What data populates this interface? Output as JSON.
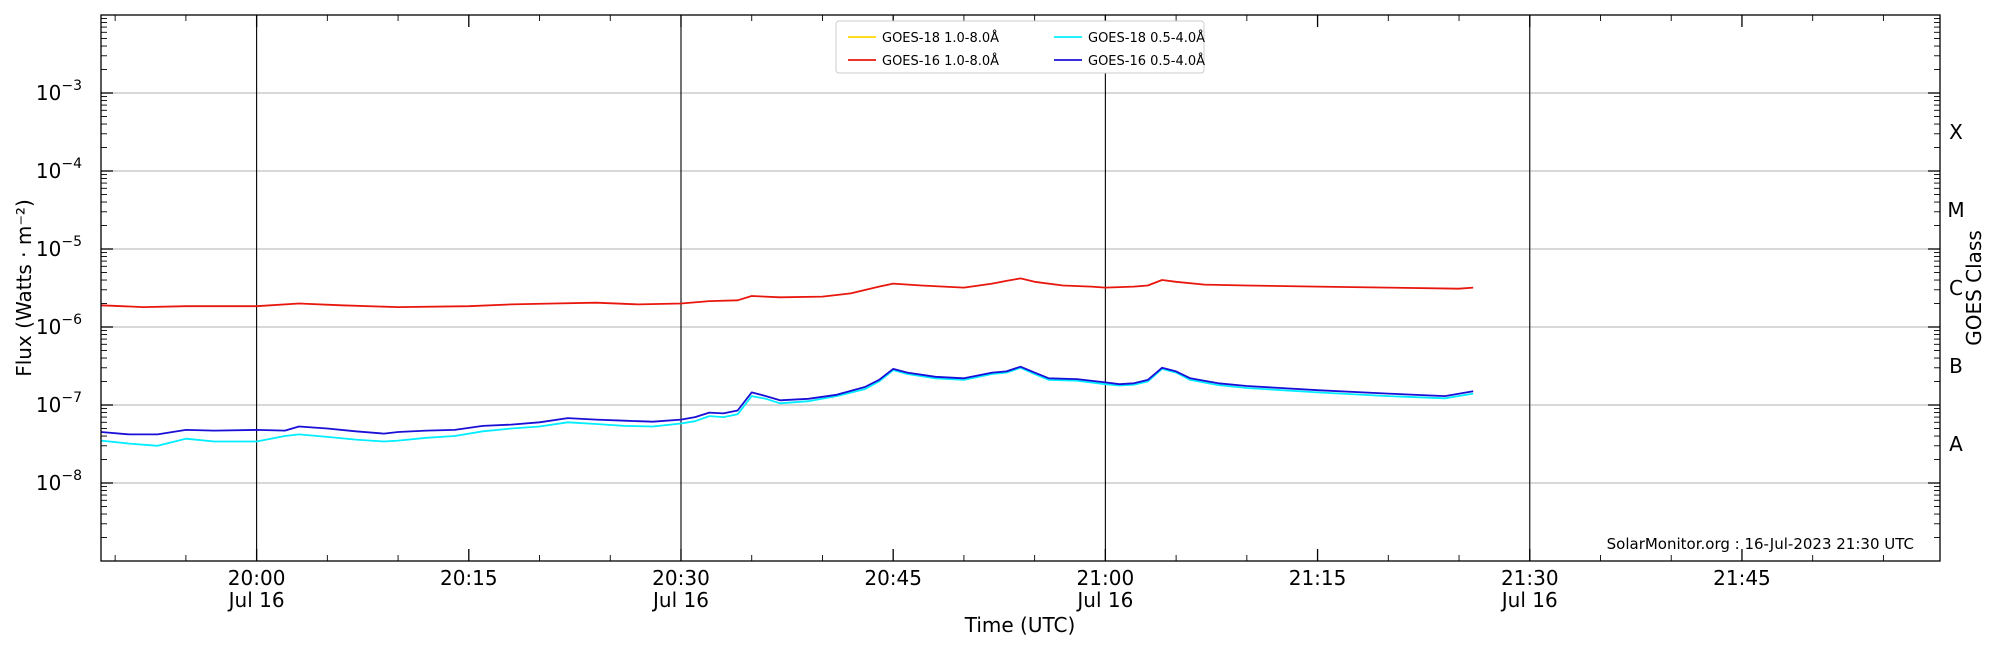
{
  "chart_data": {
    "type": "line",
    "title": "",
    "xlabel": "Time (UTC)",
    "ylabel": "Flux (Watts · m⁻²)",
    "right_ylabel": "GOES Class",
    "y_scale": "log",
    "ylim": [
      1e-09,
      0.01
    ],
    "xlim": [
      "19:49",
      "21:59"
    ],
    "grid": "horizontal",
    "legend_position": "top-center",
    "watermark": "SolarMonitor.org : 16-Jul-2023 21:30 UTC",
    "x_ticks": [
      {
        "time": "20:00",
        "label": "20:00",
        "sublabel": "Jul 16",
        "vline": true
      },
      {
        "time": "20:15",
        "label": "20:15",
        "sublabel": "",
        "vline": false
      },
      {
        "time": "20:30",
        "label": "20:30",
        "sublabel": "Jul 16",
        "vline": true
      },
      {
        "time": "20:45",
        "label": "20:45",
        "sublabel": "",
        "vline": false
      },
      {
        "time": "21:00",
        "label": "21:00",
        "sublabel": "Jul 16",
        "vline": true
      },
      {
        "time": "21:15",
        "label": "21:15",
        "sublabel": "",
        "vline": false
      },
      {
        "time": "21:30",
        "label": "21:30",
        "sublabel": "Jul 16",
        "vline": true
      },
      {
        "time": "21:45",
        "label": "21:45",
        "sublabel": "",
        "vline": false
      }
    ],
    "y_ticks": [
      {
        "exp": -3,
        "base": "10",
        "sup": "−3"
      },
      {
        "exp": -4,
        "base": "10",
        "sup": "−4"
      },
      {
        "exp": -5,
        "base": "10",
        "sup": "−5"
      },
      {
        "exp": -6,
        "base": "10",
        "sup": "−6"
      },
      {
        "exp": -7,
        "base": "10",
        "sup": "−7"
      },
      {
        "exp": -8,
        "base": "10",
        "sup": "−8"
      }
    ],
    "goes_classes": [
      {
        "label": "X",
        "center_exp": -3.5
      },
      {
        "label": "M",
        "center_exp": -4.5
      },
      {
        "label": "C",
        "center_exp": -5.5
      },
      {
        "label": "B",
        "center_exp": -6.5
      },
      {
        "label": "A",
        "center_exp": -7.5
      }
    ],
    "legend": [
      {
        "name": "GOES-18 1.0-8.0Å",
        "color": "#ffd700"
      },
      {
        "name": "GOES-18 0.5-4.0Å",
        "color": "#00eeff"
      },
      {
        "name": "GOES-16 1.0-8.0Å",
        "color": "#e8170e"
      },
      {
        "name": "GOES-16 0.5-4.0Å",
        "color": "#1a0fd6"
      }
    ],
    "series": [
      {
        "name": "GOES-16 1.0-8.0Å",
        "color": "#e8170e",
        "x": [
          "19:49",
          "19:52",
          "19:55",
          "20:00",
          "20:03",
          "20:06",
          "20:10",
          "20:15",
          "20:18",
          "20:21",
          "20:24",
          "20:27",
          "20:30",
          "20:32",
          "20:34",
          "20:35",
          "20:37",
          "20:40",
          "20:42",
          "20:44",
          "20:45",
          "20:47",
          "20:50",
          "20:52",
          "20:53",
          "20:54",
          "20:55",
          "20:57",
          "20:59",
          "21:00",
          "21:02",
          "21:03",
          "21:04",
          "21:05",
          "21:07",
          "21:10",
          "21:15",
          "21:20",
          "21:25",
          "21:26"
        ],
        "values": [
          1.9e-06,
          1.8e-06,
          1.85e-06,
          1.85e-06,
          2e-06,
          1.9e-06,
          1.8e-06,
          1.85e-06,
          1.95e-06,
          2e-06,
          2.05e-06,
          1.95e-06,
          2e-06,
          2.15e-06,
          2.2e-06,
          2.5e-06,
          2.4e-06,
          2.45e-06,
          2.7e-06,
          3.3e-06,
          3.6e-06,
          3.4e-06,
          3.2e-06,
          3.6e-06,
          3.9e-06,
          4.2e-06,
          3.8e-06,
          3.4e-06,
          3.3e-06,
          3.2e-06,
          3.3e-06,
          3.4e-06,
          4e-06,
          3.8e-06,
          3.5e-06,
          3.4e-06,
          3.3e-06,
          3.2e-06,
          3.1e-06,
          3.2e-06
        ]
      },
      {
        "name": "GOES-16 0.5-4.0Å",
        "color": "#1a0fd6",
        "x": [
          "19:49",
          "19:51",
          "19:53",
          "19:55",
          "19:57",
          "20:00",
          "20:02",
          "20:03",
          "20:05",
          "20:07",
          "20:09",
          "20:10",
          "20:12",
          "20:14",
          "20:16",
          "20:18",
          "20:20",
          "20:22",
          "20:24",
          "20:26",
          "20:28",
          "20:30",
          "20:31",
          "20:32",
          "20:33",
          "20:34",
          "20:35",
          "20:36",
          "20:37",
          "20:39",
          "20:41",
          "20:43",
          "20:44",
          "20:45",
          "20:46",
          "20:48",
          "20:50",
          "20:52",
          "20:53",
          "20:54",
          "20:55",
          "20:56",
          "20:58",
          "21:00",
          "21:01",
          "21:02",
          "21:03",
          "21:04",
          "21:05",
          "21:06",
          "21:08",
          "21:10",
          "21:15",
          "21:20",
          "21:24",
          "21:26"
        ],
        "values": [
          4.5e-08,
          4.2e-08,
          4.2e-08,
          4.8e-08,
          4.7e-08,
          4.8e-08,
          4.7e-08,
          5.3e-08,
          5e-08,
          4.6e-08,
          4.3e-08,
          4.5e-08,
          4.7e-08,
          4.8e-08,
          5.4e-08,
          5.6e-08,
          6e-08,
          6.8e-08,
          6.5e-08,
          6.3e-08,
          6.1e-08,
          6.5e-08,
          7e-08,
          8e-08,
          7.8e-08,
          8.5e-08,
          1.45e-07,
          1.3e-07,
          1.15e-07,
          1.2e-07,
          1.35e-07,
          1.7e-07,
          2.1e-07,
          2.9e-07,
          2.6e-07,
          2.3e-07,
          2.2e-07,
          2.6e-07,
          2.7e-07,
          3.1e-07,
          2.6e-07,
          2.2e-07,
          2.15e-07,
          1.95e-07,
          1.85e-07,
          1.9e-07,
          2.1e-07,
          3e-07,
          2.7e-07,
          2.2e-07,
          1.9e-07,
          1.75e-07,
          1.55e-07,
          1.4e-07,
          1.3e-07,
          1.5e-07
        ]
      },
      {
        "name": "GOES-18 0.5-4.0Å",
        "color": "#00eeff",
        "x": [
          "19:49",
          "19:51",
          "19:53",
          "19:55",
          "19:57",
          "20:00",
          "20:02",
          "20:03",
          "20:05",
          "20:07",
          "20:09",
          "20:10",
          "20:12",
          "20:14",
          "20:16",
          "20:18",
          "20:20",
          "20:22",
          "20:24",
          "20:26",
          "20:28",
          "20:30",
          "20:31",
          "20:32",
          "20:33",
          "20:34",
          "20:35",
          "20:36",
          "20:37",
          "20:39",
          "20:41",
          "20:43",
          "20:44",
          "20:45",
          "20:46",
          "20:48",
          "20:50",
          "20:52",
          "20:53",
          "20:54",
          "20:55",
          "20:56",
          "20:58",
          "21:00",
          "21:01",
          "21:02",
          "21:03",
          "21:04",
          "21:05",
          "21:06",
          "21:08",
          "21:10",
          "21:15",
          "21:20",
          "21:24",
          "21:26"
        ],
        "values": [
          3.5e-08,
          3.2e-08,
          3e-08,
          3.7e-08,
          3.4e-08,
          3.4e-08,
          4e-08,
          4.2e-08,
          3.9e-08,
          3.6e-08,
          3.4e-08,
          3.5e-08,
          3.8e-08,
          4e-08,
          4.6e-08,
          5e-08,
          5.3e-08,
          6e-08,
          5.7e-08,
          5.4e-08,
          5.3e-08,
          5.8e-08,
          6.2e-08,
          7.2e-08,
          7e-08,
          7.6e-08,
          1.3e-07,
          1.2e-07,
          1.05e-07,
          1.12e-07,
          1.3e-07,
          1.6e-07,
          2e-07,
          2.8e-07,
          2.5e-07,
          2.2e-07,
          2.1e-07,
          2.5e-07,
          2.6e-07,
          3e-07,
          2.5e-07,
          2.1e-07,
          2.05e-07,
          1.85e-07,
          1.78e-07,
          1.82e-07,
          2e-07,
          2.9e-07,
          2.6e-07,
          2.1e-07,
          1.8e-07,
          1.65e-07,
          1.45e-07,
          1.3e-07,
          1.22e-07,
          1.4e-07
        ]
      }
    ]
  }
}
